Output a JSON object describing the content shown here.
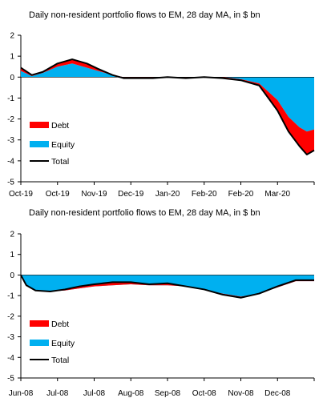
{
  "chart_data": [
    {
      "type": "area",
      "title": "Daily non-resident portfolio flows to EM, 28 day MA, in $ bn",
      "xlabel": "",
      "ylabel": "",
      "ylim": [
        -5,
        2
      ],
      "yticks": [
        2,
        1,
        0,
        -1,
        -2,
        -3,
        -4,
        -5
      ],
      "xtick_labels": [
        "Oct-19",
        "Oct-19",
        "Nov-19",
        "Dec-19",
        "Jan-20",
        "Feb-20",
        "Feb-20",
        "Mar-20"
      ],
      "legend": [
        "Debt",
        "Equity",
        "Total"
      ],
      "legend_position": "lower-left",
      "colors": {
        "debt": "#ff0000",
        "equity": "#00b0f0",
        "total": "#000000"
      },
      "series": [
        {
          "name": "Equity",
          "x": [
            0,
            0.3,
            0.6,
            1,
            1.4,
            1.8,
            2.1,
            2.5,
            2.8,
            3.2,
            3.6,
            4,
            4.5,
            5,
            5.5,
            6,
            6.5,
            7,
            7.3,
            7.6,
            7.8,
            8
          ],
          "values": [
            0.3,
            0.05,
            0.2,
            0.5,
            0.65,
            0.45,
            0.3,
            0.1,
            0,
            0,
            0,
            0,
            0,
            0,
            0,
            -0.1,
            -0.3,
            -1.1,
            -1.9,
            -2.4,
            -2.6,
            -2.5
          ]
        },
        {
          "name": "Debt",
          "x": [
            0,
            0.3,
            0.6,
            1,
            1.4,
            1.8,
            2.1,
            2.5,
            2.8,
            3.2,
            3.6,
            4,
            4.5,
            5,
            5.5,
            6,
            6.5,
            7,
            7.3,
            7.6,
            7.8,
            8
          ],
          "values": [
            0.15,
            0.05,
            0.05,
            0.15,
            0.2,
            0.2,
            0.1,
            0,
            -0.05,
            -0.05,
            -0.05,
            0,
            -0.05,
            0,
            -0.05,
            -0.05,
            -0.1,
            -0.5,
            -0.7,
            -0.9,
            -1.1,
            -1.0
          ]
        },
        {
          "name": "Total",
          "x": [
            0,
            0.3,
            0.6,
            1,
            1.4,
            1.8,
            2.1,
            2.5,
            2.8,
            3.2,
            3.6,
            4,
            4.5,
            5,
            5.5,
            6,
            6.5,
            7,
            7.3,
            7.6,
            7.8,
            8
          ],
          "values": [
            0.45,
            0.1,
            0.25,
            0.65,
            0.85,
            0.65,
            0.4,
            0.1,
            -0.05,
            -0.05,
            -0.05,
            0,
            -0.05,
            0,
            -0.05,
            -0.15,
            -0.4,
            -1.6,
            -2.6,
            -3.3,
            -3.7,
            -3.5
          ]
        }
      ]
    },
    {
      "type": "area",
      "title": "Daily non-resident portfolio flows to EM, 28 day MA, in $ bn",
      "xlabel": "",
      "ylabel": "",
      "ylim": [
        -5,
        2
      ],
      "yticks": [
        2,
        1,
        0,
        -1,
        -2,
        -3,
        -4,
        -5
      ],
      "xtick_labels": [
        "Jun-08",
        "Jul-08",
        "Jul-08",
        "Aug-08",
        "Sep-08",
        "Oct-08",
        "Nov-08",
        "Dec-08"
      ],
      "legend": [
        "Debt",
        "Equity",
        "Total"
      ],
      "legend_position": "lower-left",
      "colors": {
        "debt": "#ff0000",
        "equity": "#00b0f0",
        "total": "#000000"
      },
      "series": [
        {
          "name": "Equity",
          "x": [
            0,
            0.15,
            0.4,
            0.8,
            1.2,
            1.6,
            2,
            2.5,
            3,
            3.5,
            4,
            4.5,
            5,
            5.5,
            6,
            6.5,
            7,
            7.5,
            8
          ],
          "values": [
            0,
            -0.5,
            -0.75,
            -0.8,
            -0.75,
            -0.65,
            -0.55,
            -0.5,
            -0.45,
            -0.5,
            -0.5,
            -0.55,
            -0.7,
            -0.9,
            -1.05,
            -0.9,
            -0.6,
            -0.3,
            -0.3
          ]
        },
        {
          "name": "Debt",
          "x": [
            0,
            0.15,
            0.4,
            0.8,
            1.2,
            1.6,
            2,
            2.5,
            3,
            3.5,
            4,
            4.5,
            5,
            5.5,
            6,
            6.5,
            7,
            7.5,
            8
          ],
          "values": [
            0,
            0,
            0,
            0,
            0.05,
            0.1,
            0.1,
            0.15,
            0.1,
            0.05,
            0.1,
            0,
            0,
            -0.05,
            -0.05,
            0,
            0.05,
            0.05,
            0.05
          ]
        },
        {
          "name": "Total",
          "x": [
            0,
            0.15,
            0.4,
            0.8,
            1.2,
            1.6,
            2,
            2.5,
            3,
            3.5,
            4,
            4.5,
            5,
            5.5,
            6,
            6.5,
            7,
            7.5,
            8
          ],
          "values": [
            0,
            -0.5,
            -0.75,
            -0.8,
            -0.7,
            -0.55,
            -0.45,
            -0.35,
            -0.35,
            -0.45,
            -0.4,
            -0.55,
            -0.7,
            -0.95,
            -1.1,
            -0.9,
            -0.55,
            -0.25,
            -0.25
          ]
        }
      ]
    }
  ]
}
